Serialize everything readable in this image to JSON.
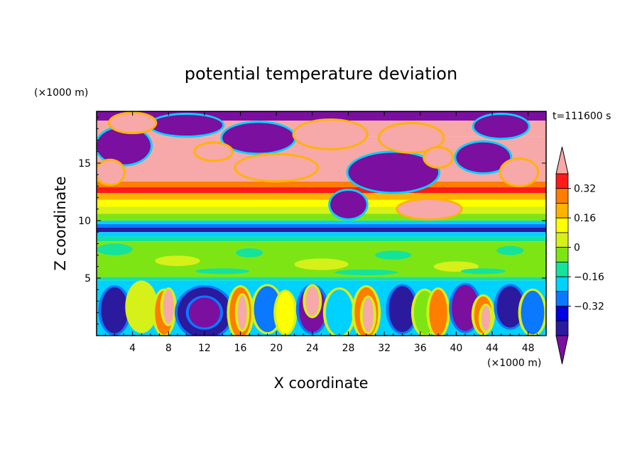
{
  "chart_data": {
    "type": "heatmap",
    "title": "potential temperature deviation",
    "time_label": "t=111600 s",
    "xlabel": "X coordinate",
    "ylabel": "Z coordinate",
    "x_unit": "(×1000 m)",
    "y_unit": "(×1000 m)",
    "xlim": [
      0,
      50
    ],
    "ylim": [
      0,
      19.5
    ],
    "x_ticks": [
      4,
      8,
      12,
      16,
      20,
      24,
      28,
      32,
      36,
      40,
      44,
      48
    ],
    "x_tick_labels": [
      "4",
      "8",
      "12",
      "16",
      "20",
      "24",
      "28",
      "32",
      "36",
      "40",
      "44",
      "48"
    ],
    "y_ticks": [
      5,
      10,
      15
    ],
    "y_tick_labels": [
      "5",
      "10",
      "15"
    ],
    "colorbar": {
      "levels": [
        -0.48,
        -0.4,
        -0.32,
        -0.24,
        -0.16,
        -0.08,
        0,
        0.08,
        0.16,
        0.24,
        0.32,
        0.4
      ],
      "labels": [
        {
          "value": 0.32,
          "text": "0.32"
        },
        {
          "value": 0.16,
          "text": "0.16"
        },
        {
          "value": 0,
          "text": "0"
        },
        {
          "value": -0.16,
          "text": "−0.16"
        },
        {
          "value": -0.32,
          "text": "−0.32"
        }
      ],
      "colors": [
        "#7a0fa0",
        "#2b1a9e",
        "#0000e0",
        "#0a78ff",
        "#00d2ff",
        "#15e39a",
        "#7ee515",
        "#d6f01a",
        "#ffff00",
        "#ffb300",
        "#ff7d00",
        "#ff1a1a",
        "#f7a8a8"
      ],
      "extend": "both"
    },
    "bands": [
      {
        "z_range": [
          18.5,
          19.5
        ],
        "value": "mixed"
      },
      {
        "z_range": [
          13,
          17
        ],
        "value": ">0.4 / <-0.48 patches"
      },
      {
        "z_range": [
          12,
          13
        ],
        "value": 0.32
      },
      {
        "z_range": [
          11,
          12
        ],
        "value": 0.16
      },
      {
        "z_range": [
          10,
          11
        ],
        "value": 0.04
      },
      {
        "z_range": [
          9,
          9.5
        ],
        "value": -0.44
      },
      {
        "z_range": [
          5,
          8.5
        ],
        "value": 0
      },
      {
        "z_range": [
          4.5,
          5
        ],
        "value": -0.1
      },
      {
        "z_range": [
          0,
          4.5
        ],
        "value": "convective cells"
      }
    ]
  }
}
